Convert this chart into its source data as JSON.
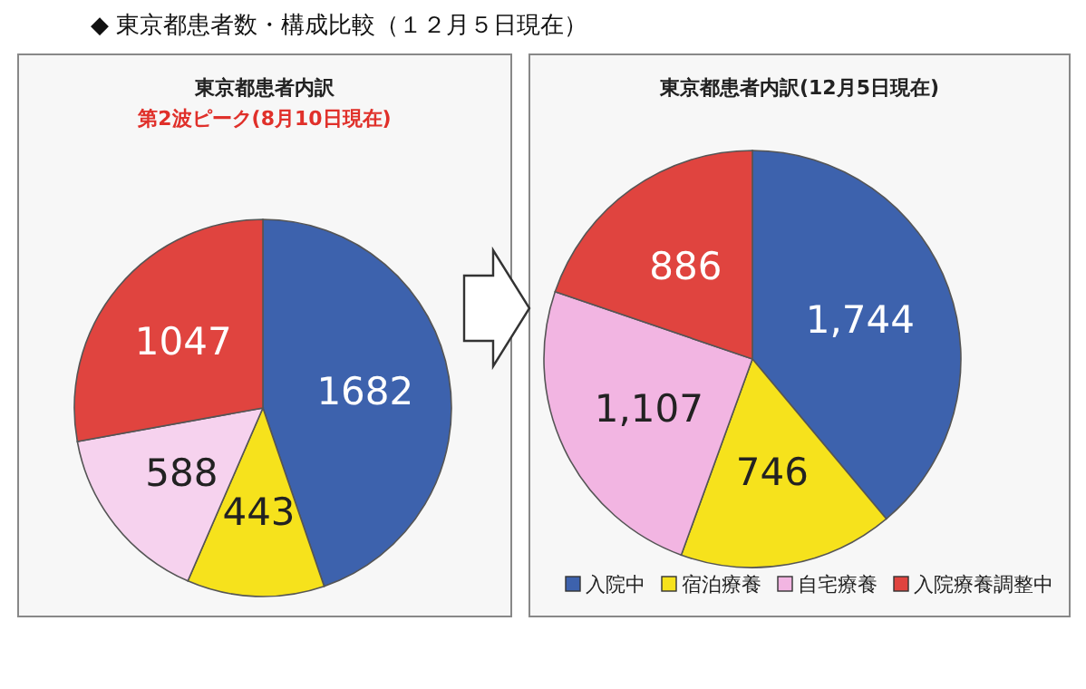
{
  "chart_data": [
    {
      "type": "pie",
      "title": "東京都患者内訳",
      "subtitle": "第2波ピーク(8月10日現在)",
      "annotations": [
        "◆ 東京都患者数・構成比較（１２月５日現在）"
      ],
      "categories": [
        null,
        null,
        null,
        null
      ],
      "values": [
        1682,
        443,
        588,
        1047
      ],
      "value_labels": [
        "1682",
        "443",
        "588",
        "1047"
      ],
      "colors": [
        "#3d62ad",
        "#f6e21c",
        "#f6d2ee",
        "#e0443f"
      ],
      "legend": false
    },
    {
      "type": "pie",
      "title": "東京都患者内訳(12月5日現在)",
      "categories": [
        "入院中",
        "宿泊療養",
        "自宅療養",
        "入院療養調整中"
      ],
      "values": [
        1744,
        746,
        1107,
        886
      ],
      "value_labels": [
        "1,744",
        "746",
        "1,107",
        "886"
      ],
      "colors": [
        "#3d62ad",
        "#f6e21c",
        "#f2b5e2",
        "#e0443f"
      ],
      "legend": "bottom"
    }
  ]
}
